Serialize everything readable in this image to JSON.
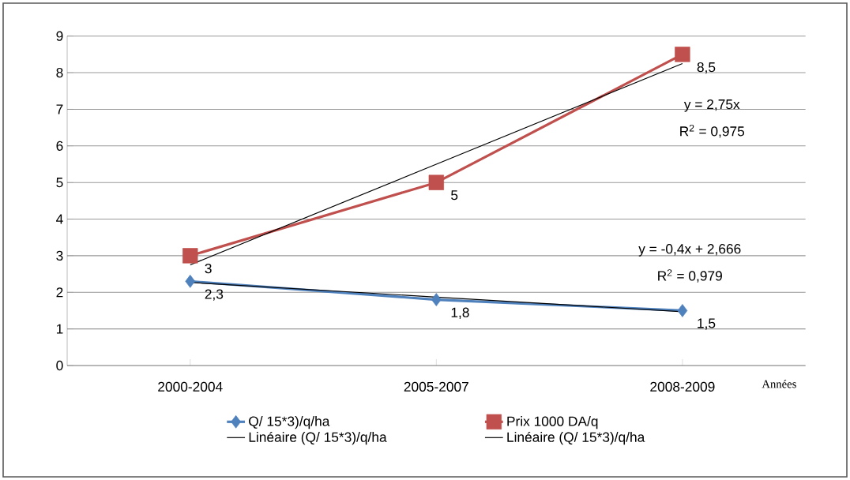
{
  "chart_data": {
    "type": "line",
    "xlabel": "Années",
    "categories": [
      "2000-2004",
      "2005-2007",
      "2008-2009"
    ],
    "series": [
      {
        "name": "Q/ 15*3)/q/ha",
        "color": "#4f81bd",
        "values": [
          2.3,
          1.8,
          1.5
        ],
        "marker": "diamond",
        "value_labels": [
          "2,3",
          "1,8",
          "1,5"
        ]
      },
      {
        "name": "Prix 1000 DA/q",
        "color": "#c0504d",
        "values": [
          3,
          5,
          8.5
        ],
        "marker": "square",
        "value_labels": [
          "3",
          "5",
          "8,5"
        ]
      },
      {
        "name": "Linéaire (Q/ 15*3)/q/ha",
        "color": "#000000",
        "values": [
          2.27,
          1.87,
          1.47
        ],
        "marker": "none"
      },
      {
        "name": "Linéaire (Q/ 15*3)/q/ha",
        "color": "#000000",
        "values": [
          2.75,
          5.5,
          8.25
        ],
        "marker": "none"
      }
    ],
    "annotations": [
      "y = 2,75x",
      "R$^{2}$ = 0,975",
      "y = -0,4x + 2,666",
      "R$^{2}$ = 0,979"
    ],
    "ylim": [
      0,
      9
    ],
    "yticks": [
      0,
      1,
      2,
      3,
      4,
      5,
      6,
      7,
      8,
      9
    ],
    "grid": "y",
    "legend": "bottom"
  }
}
